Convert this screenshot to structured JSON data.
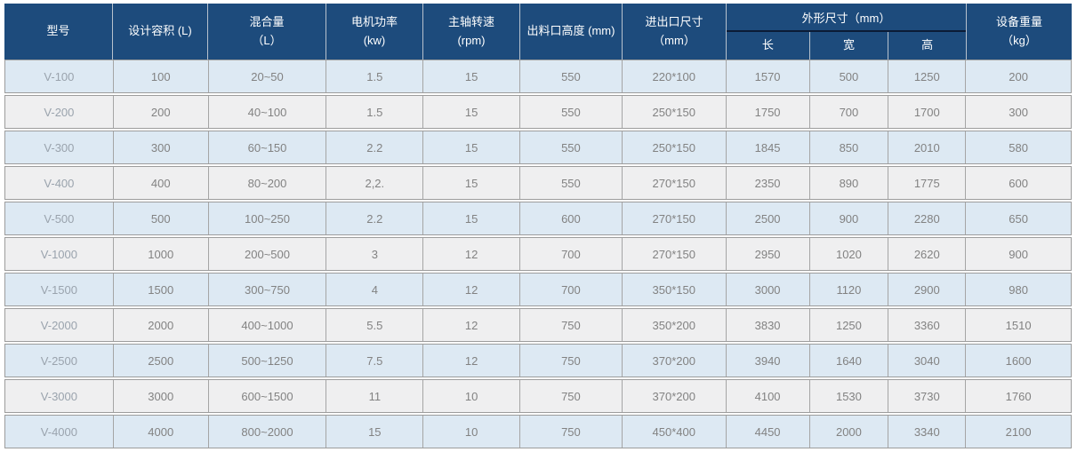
{
  "colors": {
    "header_bg": "#1d4b7c",
    "header_separator": "#b7c1cd",
    "header_group_divider": "#0b1b36",
    "row_blue": "#dde9f3",
    "row_gray": "#efeff0",
    "row_border": "#9c9c9c",
    "body_text": "#828282",
    "header_text": "#ffffff"
  },
  "table": {
    "headers": {
      "model": "型号",
      "capacity": "设计容积 (L)",
      "mix_line1": "混合量",
      "mix_line2": "（L）",
      "power_line1": "电机功率",
      "power_line2": "(kw)",
      "speed_line1": "主轴转速",
      "speed_line2": "(rpm)",
      "outlet_height": "出料口高度 (mm)",
      "inlet_outlet_line1": "进出口尺寸",
      "inlet_outlet_line2": "（mm）",
      "dims_group": "外形尺寸（mm）",
      "dims_length": "长",
      "dims_width": "宽",
      "dims_height": "高",
      "weight_line1": "设备重量",
      "weight_line2": "（kg）"
    },
    "column_keys": [
      "model",
      "design-capacity",
      "mix-amount",
      "motor-power",
      "spindle-speed",
      "outlet-height",
      "inlet-outlet-size",
      "dim-length",
      "dim-width",
      "dim-height",
      "equipment-weight"
    ],
    "rows": [
      [
        "V-100",
        "100",
        "20~50",
        "1.5",
        "15",
        "550",
        "220*100",
        "1570",
        "500",
        "1250",
        "200"
      ],
      [
        "V-200",
        "200",
        "40~100",
        "1.5",
        "15",
        "550",
        "250*150",
        "1750",
        "700",
        "1700",
        "300"
      ],
      [
        "V-300",
        "300",
        "60~150",
        "2.2",
        "15",
        "550",
        "250*150",
        "1845",
        "850",
        "2010",
        "580"
      ],
      [
        "V-400",
        "400",
        "80~200",
        "2,2.",
        "15",
        "550",
        "270*150",
        "2350",
        "890",
        "1775",
        "600"
      ],
      [
        "V-500",
        "500",
        "100~250",
        "2.2",
        "15",
        "600",
        "270*150",
        "2500",
        "900",
        "2280",
        "650"
      ],
      [
        "V-1000",
        "1000",
        "200~500",
        "3",
        "12",
        "700",
        "270*150",
        "2950",
        "1020",
        "2620",
        "900"
      ],
      [
        "V-1500",
        "1500",
        "300~750",
        "4",
        "12",
        "700",
        "350*150",
        "3000",
        "1120",
        "2900",
        "980"
      ],
      [
        "V-2000",
        "2000",
        "400~1000",
        "5.5",
        "12",
        "750",
        "350*200",
        "3830",
        "1250",
        "3360",
        "1510"
      ],
      [
        "V-2500",
        "2500",
        "500~1250",
        "7.5",
        "12",
        "750",
        "370*200",
        "3940",
        "1640",
        "3040",
        "1600"
      ],
      [
        "V-3000",
        "3000",
        "600~1500",
        "11",
        "10",
        "750",
        "370*200",
        "4100",
        "1530",
        "3730",
        "1760"
      ],
      [
        "V-4000",
        "4000",
        "800~2000",
        "15",
        "10",
        "750",
        "450*400",
        "4450",
        "2000",
        "3340",
        "2100"
      ]
    ]
  }
}
